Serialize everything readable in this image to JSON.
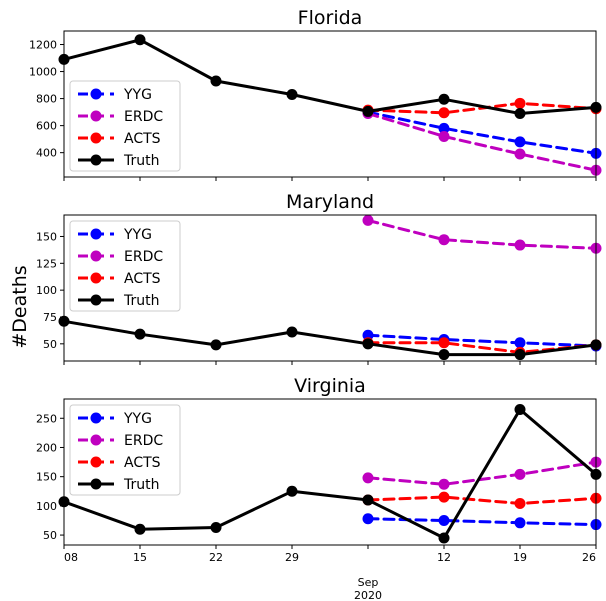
{
  "figure": {
    "ylabel": "#Deaths",
    "x_ticks": [
      {
        "date": "2020-08-08",
        "label": "08"
      },
      {
        "date": "2020-08-15",
        "label": "15"
      },
      {
        "date": "2020-08-22",
        "label": "22"
      },
      {
        "date": "2020-08-29",
        "label": "29"
      },
      {
        "date": "2020-09-05",
        "label": ""
      },
      {
        "date": "2020-09-12",
        "label": "12"
      },
      {
        "date": "2020-09-19",
        "label": "19"
      },
      {
        "date": "2020-09-26",
        "label": "26"
      }
    ],
    "x_major_label": "Sep\n2020",
    "x_major_date": "2020-09-05",
    "xlim": [
      "2020-08-08",
      "2020-09-26"
    ]
  },
  "chart_data": [
    {
      "type": "line",
      "title": "Florida",
      "ylim": [
        220,
        1300
      ],
      "yticks": [
        400,
        600,
        800,
        1000,
        1200
      ],
      "legend_position": "lower-left",
      "series": [
        {
          "name": "YYG",
          "color": "#0000ff",
          "style": "dashed",
          "x": [
            "2020-09-05",
            "2020-09-12",
            "2020-09-19",
            "2020-09-26"
          ],
          "values": [
            700,
            580,
            480,
            395
          ]
        },
        {
          "name": "ERDC",
          "color": "#bf00bf",
          "style": "dashed",
          "x": [
            "2020-09-05",
            "2020-09-12",
            "2020-09-19",
            "2020-09-26"
          ],
          "values": [
            690,
            520,
            390,
            270
          ]
        },
        {
          "name": "ACTS",
          "color": "#ff0000",
          "style": "dashed",
          "x": [
            "2020-09-05",
            "2020-09-12",
            "2020-09-19",
            "2020-09-26"
          ],
          "values": [
            715,
            695,
            765,
            725
          ]
        },
        {
          "name": "Truth",
          "color": "#000000",
          "style": "solid",
          "x": [
            "2020-08-08",
            "2020-08-15",
            "2020-08-22",
            "2020-08-29",
            "2020-09-05",
            "2020-09-12",
            "2020-09-19",
            "2020-09-26"
          ],
          "values": [
            1090,
            1235,
            930,
            830,
            705,
            795,
            690,
            735
          ]
        }
      ]
    },
    {
      "type": "line",
      "title": "Maryland",
      "ylim": [
        34,
        170
      ],
      "yticks": [
        50,
        75,
        100,
        125,
        150
      ],
      "legend_position": "upper-left",
      "series": [
        {
          "name": "YYG",
          "color": "#0000ff",
          "style": "dashed",
          "x": [
            "2020-09-05",
            "2020-09-12",
            "2020-09-19",
            "2020-09-26"
          ],
          "values": [
            58,
            54,
            51,
            48
          ]
        },
        {
          "name": "ERDC",
          "color": "#bf00bf",
          "style": "dashed",
          "x": [
            "2020-09-05",
            "2020-09-12",
            "2020-09-19",
            "2020-09-26"
          ],
          "values": [
            165,
            147,
            142,
            139
          ]
        },
        {
          "name": "ACTS",
          "color": "#ff0000",
          "style": "dashed",
          "x": [
            "2020-09-05",
            "2020-09-12",
            "2020-09-19",
            "2020-09-26"
          ],
          "values": [
            51,
            51,
            42,
            49
          ]
        },
        {
          "name": "Truth",
          "color": "#000000",
          "style": "solid",
          "x": [
            "2020-08-08",
            "2020-08-15",
            "2020-08-22",
            "2020-08-29",
            "2020-09-05",
            "2020-09-12",
            "2020-09-19",
            "2020-09-26"
          ],
          "values": [
            71,
            59,
            49,
            61,
            50,
            40,
            40,
            49
          ]
        }
      ]
    },
    {
      "type": "line",
      "title": "Virginia",
      "ylim": [
        33,
        283
      ],
      "yticks": [
        50,
        100,
        150,
        200,
        250
      ],
      "legend_position": "upper-left",
      "series": [
        {
          "name": "YYG",
          "color": "#0000ff",
          "style": "dashed",
          "x": [
            "2020-09-05",
            "2020-09-12",
            "2020-09-19",
            "2020-09-26"
          ],
          "values": [
            78,
            75,
            71,
            68
          ]
        },
        {
          "name": "ERDC",
          "color": "#bf00bf",
          "style": "dashed",
          "x": [
            "2020-09-05",
            "2020-09-12",
            "2020-09-19",
            "2020-09-26"
          ],
          "values": [
            148,
            137,
            154,
            175
          ]
        },
        {
          "name": "ACTS",
          "color": "#ff0000",
          "style": "dashed",
          "x": [
            "2020-09-05",
            "2020-09-12",
            "2020-09-19",
            "2020-09-26"
          ],
          "values": [
            110,
            115,
            104,
            113
          ]
        },
        {
          "name": "Truth",
          "color": "#000000",
          "style": "solid",
          "x": [
            "2020-08-08",
            "2020-08-15",
            "2020-08-22",
            "2020-08-29",
            "2020-09-05",
            "2020-09-12",
            "2020-09-19",
            "2020-09-26"
          ],
          "values": [
            107,
            60,
            63,
            125,
            110,
            45,
            265,
            154
          ]
        }
      ]
    }
  ]
}
